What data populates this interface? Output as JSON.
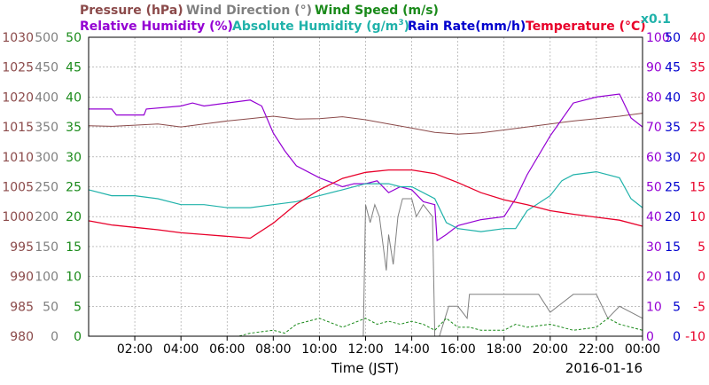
{
  "chart_data": {
    "type": "line",
    "x_ticks": [
      "02:00",
      "04:00",
      "06:00",
      "08:00",
      "10:00",
      "12:00",
      "14:00",
      "16:00",
      "18:00",
      "20:00",
      "22:00",
      "00:00"
    ],
    "xlabel": "Time (JST)",
    "date": "2016-01-16",
    "axis_titles": {
      "pressure": "Pressure (hPa)",
      "wind_direction": "Wind Direction (°)",
      "wind_speed": "Wind Speed (m/s)",
      "rel_humidity": "Relative Humidity (%)",
      "abs_humidity_prefix": "Absolute Humidity (g/m",
      "abs_humidity_sup": "3",
      "abs_humidity_suffix": ")",
      "rain_rate": "Rain Rate(mm/h)",
      "temperature": "Temperature (°C)",
      "abs_scale": "x0.1"
    },
    "axes": {
      "pressure": {
        "ticks": [
          "1030",
          "1025",
          "1020",
          "1015",
          "1010",
          "1005",
          "1000",
          "995",
          "990",
          "985",
          "980"
        ],
        "range": [
          980,
          1030
        ],
        "color": "#8b4a4a"
      },
      "wind_direction": {
        "ticks": [
          "500",
          "450",
          "400",
          "350",
          "300",
          "250",
          "200",
          "150",
          "100",
          "50",
          "0"
        ],
        "range": [
          0,
          500
        ],
        "color": "#808080"
      },
      "wind_speed": {
        "ticks": [
          "50",
          "45",
          "40",
          "35",
          "30",
          "25",
          "20",
          "15",
          "10",
          "5",
          "0"
        ],
        "range": [
          0,
          50
        ],
        "color": "#1a8a1a"
      },
      "rel_humidity": {
        "ticks": [
          "100",
          "90",
          "80",
          "70",
          "60",
          "50",
          "40",
          "30",
          "20",
          "10",
          "0"
        ],
        "range": [
          0,
          100
        ],
        "color": "#9400d3"
      },
      "rain_rate": {
        "ticks": [
          "50",
          "45",
          "40",
          "35",
          "30",
          "25",
          "20",
          "15",
          "10",
          "5",
          "0"
        ],
        "range": [
          0,
          50
        ],
        "color": "#0000cd"
      },
      "temperature": {
        "ticks": [
          "40",
          "35",
          "30",
          "25",
          "20",
          "15",
          "10",
          "5",
          "0",
          "-5",
          "-10"
        ],
        "range": [
          -10,
          40
        ],
        "color": "#e8002a"
      }
    },
    "series": [
      {
        "name": "Pressure (hPa)",
        "color": "#8b4a4a",
        "x": [
          0,
          1,
          2,
          3,
          4,
          5,
          6,
          7,
          8,
          9,
          10,
          11,
          12,
          13,
          14,
          15,
          16,
          17,
          18,
          19,
          20,
          21,
          22,
          23,
          24
        ],
        "y": [
          1015.2,
          1015.1,
          1015.3,
          1015.5,
          1015.0,
          1015.5,
          1016.0,
          1016.4,
          1016.8,
          1016.3,
          1016.4,
          1016.7,
          1016.2,
          1015.5,
          1014.8,
          1014.1,
          1013.8,
          1014.0,
          1014.5,
          1015.0,
          1015.5,
          1016.0,
          1016.4,
          1016.8,
          1017.3
        ]
      },
      {
        "name": "Relative Humidity (%)",
        "color": "#9400d3",
        "x": [
          0,
          1,
          1.2,
          2.4,
          2.5,
          4,
          4.5,
          5,
          6,
          7,
          7.5,
          8,
          8.5,
          9,
          10,
          11,
          11.5,
          12,
          12.5,
          13,
          13.5,
          14,
          14.5,
          15,
          15.1,
          15.5,
          16,
          17,
          18,
          18.5,
          19,
          20,
          21,
          22,
          23,
          23.5,
          24
        ],
        "y": [
          76,
          76,
          74,
          74,
          76,
          77,
          78,
          77,
          78,
          79,
          77,
          68,
          62,
          57,
          53,
          50,
          51,
          51,
          52,
          48,
          50,
          49,
          45,
          44,
          32,
          34,
          37,
          39,
          40,
          46,
          54,
          67,
          78,
          80,
          81,
          73,
          70
        ]
      },
      {
        "name": "Absolute Humidity (g/m3) x0.1",
        "color": "#20b2aa",
        "x": [
          0,
          1,
          2,
          3,
          4,
          5,
          6,
          7,
          8,
          9,
          10,
          11,
          12,
          13,
          13.5,
          14,
          15,
          15.5,
          16,
          17,
          18,
          18.5,
          19,
          20,
          20.5,
          21,
          22,
          23,
          23.5,
          24
        ],
        "y": [
          49,
          47,
          47,
          46,
          44,
          44,
          43,
          43,
          44,
          45,
          47,
          49,
          51,
          51,
          50,
          50,
          46,
          38,
          36,
          35,
          36,
          36,
          42,
          47,
          52,
          54,
          55,
          53,
          46,
          43
        ]
      },
      {
        "name": "Temperature (°C)",
        "color": "#e8002a",
        "x": [
          0,
          1,
          2,
          3,
          4,
          5,
          6,
          7,
          8,
          9,
          10,
          11,
          12,
          13,
          14,
          15,
          16,
          17,
          18,
          19,
          20,
          21,
          22,
          23,
          24
        ],
        "y": [
          9.3,
          8.6,
          8.2,
          7.8,
          7.3,
          7.0,
          6.7,
          6.4,
          8.9,
          12.1,
          14.5,
          16.4,
          17.4,
          17.8,
          17.8,
          17.2,
          15.7,
          14.0,
          12.8,
          12.0,
          11.0,
          10.4,
          9.9,
          9.4,
          8.4
        ]
      },
      {
        "name": "Wind Direction (°)",
        "color": "#808080",
        "x": [
          0,
          11.9,
          12,
          12.2,
          12.4,
          12.6,
          12.9,
          13,
          13.2,
          13.4,
          13.6,
          14,
          14.2,
          14.5,
          14.9,
          15,
          15.2,
          15.6,
          16,
          16.4,
          16.5,
          17,
          18,
          19,
          19.5,
          20,
          21,
          22,
          22.5,
          23,
          24
        ],
        "y": [
          0,
          0,
          220,
          190,
          220,
          200,
          110,
          170,
          120,
          200,
          230,
          230,
          200,
          220,
          200,
          0,
          0,
          50,
          50,
          30,
          70,
          70,
          70,
          70,
          70,
          40,
          70,
          70,
          30,
          50,
          30
        ]
      },
      {
        "name": "Wind Speed (m/s)",
        "color": "#1a8a1a",
        "x": [
          0,
          6.5,
          7,
          8,
          8.5,
          9,
          10,
          11,
          12,
          12.5,
          13,
          13.5,
          14,
          14.5,
          15,
          15.5,
          16,
          16.5,
          17,
          18,
          18.5,
          19,
          20,
          21,
          22,
          22.5,
          23,
          24
        ],
        "y": [
          0,
          0,
          0.5,
          1,
          0.5,
          2,
          3,
          1.5,
          3,
          2,
          2.5,
          2,
          2.5,
          2,
          1,
          3,
          1.5,
          1.5,
          1,
          1,
          2,
          1.5,
          2,
          1,
          1.5,
          3,
          2,
          1
        ]
      }
    ]
  }
}
